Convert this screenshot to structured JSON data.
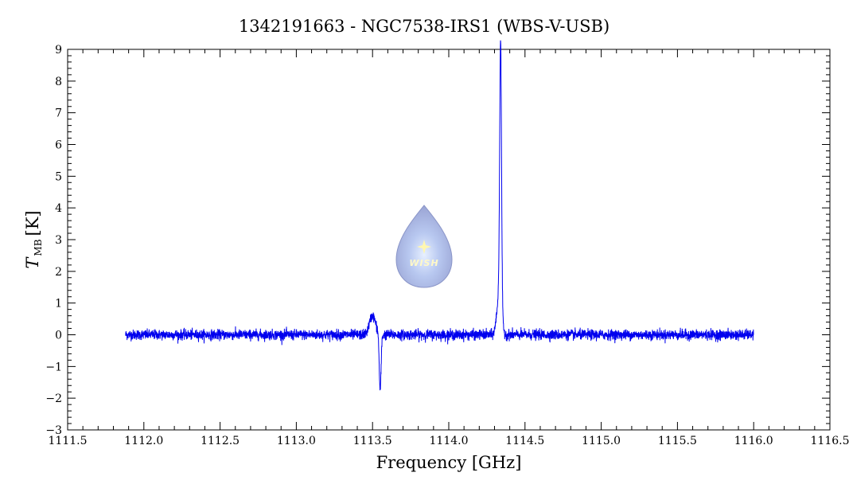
{
  "chart_data": {
    "type": "line",
    "title": "1342191663 - NGC7538-IRS1 (WBS-V-USB)",
    "xlabel": "Frequency [GHz]",
    "ylabel_main": "T",
    "ylabel_sub": "MB",
    "ylabel_unit": "[K]",
    "xlim": [
      1111.5,
      1116.5
    ],
    "ylim": [
      -3,
      9
    ],
    "x_ticks": [
      "1111.5",
      "1112.0",
      "1112.5",
      "1113.0",
      "1113.5",
      "1114.0",
      "1114.5",
      "1115.0",
      "1115.5",
      "1116.0",
      "1116.5"
    ],
    "y_ticks": [
      "-3",
      "-2",
      "-1",
      "0",
      "1",
      "2",
      "3",
      "4",
      "5",
      "6",
      "7",
      "8",
      "9"
    ],
    "grid": false,
    "line_color": "#0000ee",
    "series": [
      {
        "x_range": [
          1111.88,
          1116.0
        ],
        "noise_rms": 0.08,
        "features": [
          {
            "kind": "emission",
            "center": 1113.5,
            "peak": 0.6,
            "width": 0.02
          },
          {
            "kind": "absorption",
            "center": 1113.55,
            "depth": -1.8,
            "width": 0.006
          },
          {
            "kind": "emission",
            "center": 1114.34,
            "peak": 8.4,
            "width": 0.006
          },
          {
            "kind": "emission_wing",
            "center": 1114.33,
            "peak": 1.2,
            "width": 0.015
          }
        ]
      }
    ]
  },
  "logo": {
    "text": "WISH",
    "colors": {
      "body": "#a9b4dc",
      "core": "#cfe0ff",
      "star": "#fff7b0"
    }
  }
}
